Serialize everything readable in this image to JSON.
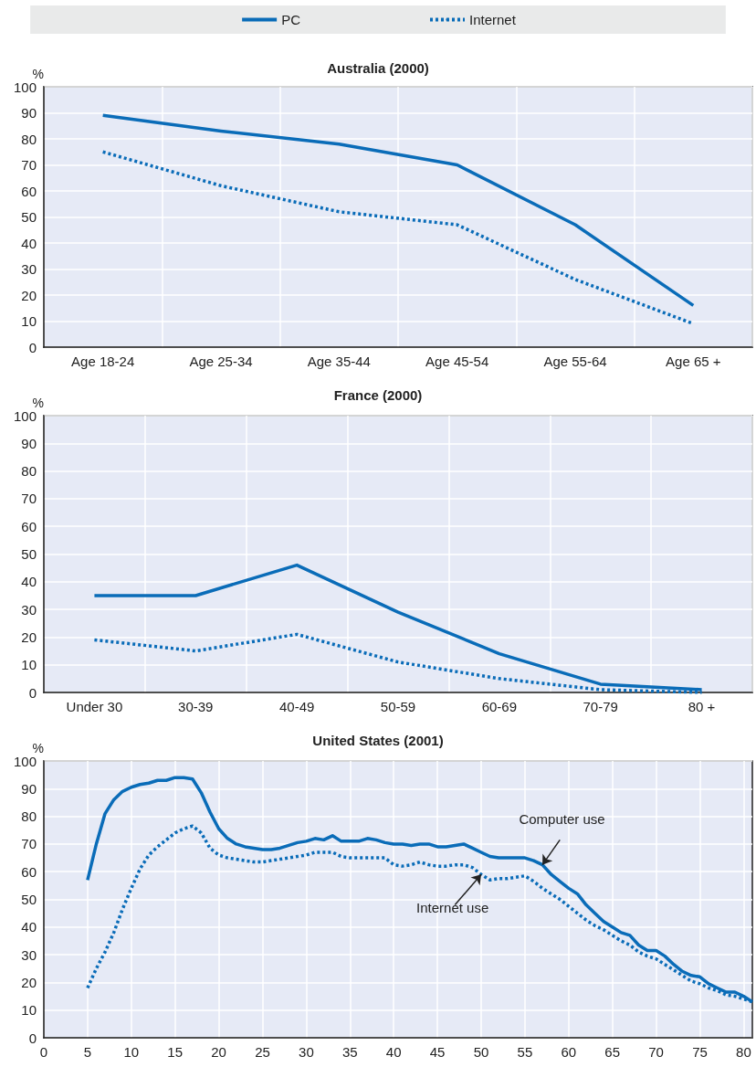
{
  "chart_data": [
    {
      "type": "line",
      "title": "Australia (2000)",
      "ylabel": "%",
      "categories": [
        "Age 18-24",
        "Age 25-34",
        "Age 35-44",
        "Age 45-54",
        "Age 55-64",
        "Age 65 +"
      ],
      "series": [
        {
          "name": "PC",
          "color": "#0a6cb8",
          "line_style": "solid",
          "values": [
            89,
            83,
            78,
            70,
            47,
            16
          ]
        },
        {
          "name": "Internet",
          "color": "#0a6cb8",
          "line_style": "dotted",
          "values": [
            75,
            62,
            52,
            47,
            26,
            9
          ]
        }
      ],
      "ylim": [
        0,
        100
      ],
      "yticks": [
        0,
        10,
        20,
        30,
        40,
        50,
        60,
        70,
        80,
        90,
        100
      ],
      "grid": true,
      "legend": "top",
      "marker": "none"
    },
    {
      "type": "line",
      "title": "France (2000)",
      "ylabel": "%",
      "categories": [
        "Under 30",
        "30-39",
        "40-49",
        "50-59",
        "60-69",
        "70-79",
        "80 +"
      ],
      "series": [
        {
          "color": "#0a6cb8",
          "line_style": "solid",
          "values": [
            35,
            35,
            46,
            29,
            14,
            3,
            1
          ]
        },
        {
          "color": "#0a6cb8",
          "line_style": "dotted",
          "values": [
            19,
            15,
            21,
            11,
            5,
            1,
            0
          ]
        }
      ],
      "ylim": [
        0,
        100
      ],
      "yticks": [
        0,
        10,
        20,
        30,
        40,
        50,
        60,
        70,
        80,
        90,
        100
      ],
      "grid": true,
      "marker": "none"
    },
    {
      "type": "line",
      "title": "United States (2001)",
      "ylabel": "%",
      "x": [
        5,
        6,
        7,
        8,
        9,
        10,
        11,
        12,
        13,
        14,
        15,
        16,
        17,
        18,
        19,
        20,
        21,
        22,
        23,
        24,
        25,
        26,
        27,
        28,
        29,
        30,
        31,
        32,
        33,
        34,
        35,
        36,
        37,
        38,
        39,
        40,
        41,
        42,
        43,
        44,
        45,
        46,
        47,
        48,
        49,
        50,
        51,
        52,
        53,
        54,
        55,
        56,
        57,
        58,
        59,
        60,
        61,
        62,
        63,
        64,
        65,
        66,
        67,
        68,
        69,
        70,
        71,
        72,
        73,
        74,
        75,
        76,
        77,
        78,
        79,
        80,
        81
      ],
      "series": [
        {
          "color": "#0a6cb8",
          "line_style": "solid",
          "values": [
            57,
            70,
            81,
            86,
            89,
            90.5,
            91.5,
            92,
            93,
            93,
            94,
            94,
            93.5,
            88.5,
            81.5,
            75.5,
            72,
            70,
            69,
            68.5,
            68,
            68,
            68.5,
            69.5,
            70.5,
            71,
            72,
            71.5,
            73,
            71,
            71,
            71,
            72,
            71.5,
            70.5,
            70,
            70,
            69.5,
            70,
            70,
            69,
            69,
            69.5,
            70,
            68.5,
            67,
            65.5,
            65,
            65,
            65,
            65,
            64,
            62.5,
            59,
            56.5,
            54,
            52,
            48,
            45,
            42,
            40,
            38,
            37,
            33.5,
            31.5,
            31.5,
            29.5,
            26.5,
            24,
            22.5,
            22,
            19.5,
            18,
            16.5,
            16.5,
            15,
            13
          ]
        },
        {
          "color": "#0a6cb8",
          "line_style": "dotted",
          "values": [
            18,
            25,
            31,
            38,
            46.5,
            54,
            61,
            66,
            69,
            71.5,
            74,
            75.5,
            76.5,
            74,
            68.5,
            66,
            65,
            64.5,
            64,
            63.5,
            63.5,
            64,
            64.5,
            65,
            65.5,
            66,
            67,
            67,
            67,
            65.5,
            65,
            65,
            65,
            65,
            65,
            62.5,
            62,
            62.5,
            63.5,
            62.5,
            62,
            62,
            62.5,
            62.5,
            61.5,
            59,
            57,
            57.5,
            57.5,
            58,
            58.5,
            56.5,
            54,
            52,
            50,
            47.5,
            45,
            42.5,
            40.5,
            39,
            37,
            35,
            33.5,
            31,
            29.5,
            28.5,
            26.5,
            24.5,
            22.5,
            20.5,
            19.5,
            18,
            17,
            15.5,
            15,
            14,
            13
          ]
        }
      ],
      "xlim": [
        0,
        81
      ],
      "xticks": [
        0,
        5,
        10,
        15,
        20,
        25,
        30,
        35,
        40,
        45,
        50,
        55,
        60,
        65,
        70,
        75,
        80
      ],
      "ylim": [
        0,
        100
      ],
      "yticks": [
        0,
        10,
        20,
        30,
        40,
        50,
        60,
        70,
        80,
        90,
        100
      ],
      "grid": true,
      "marker": "none",
      "annotations": [
        {
          "text": "Computer use",
          "x": 57,
          "y": 62.5
        },
        {
          "text": "Internet use",
          "x": 50,
          "y": 59
        }
      ]
    }
  ]
}
